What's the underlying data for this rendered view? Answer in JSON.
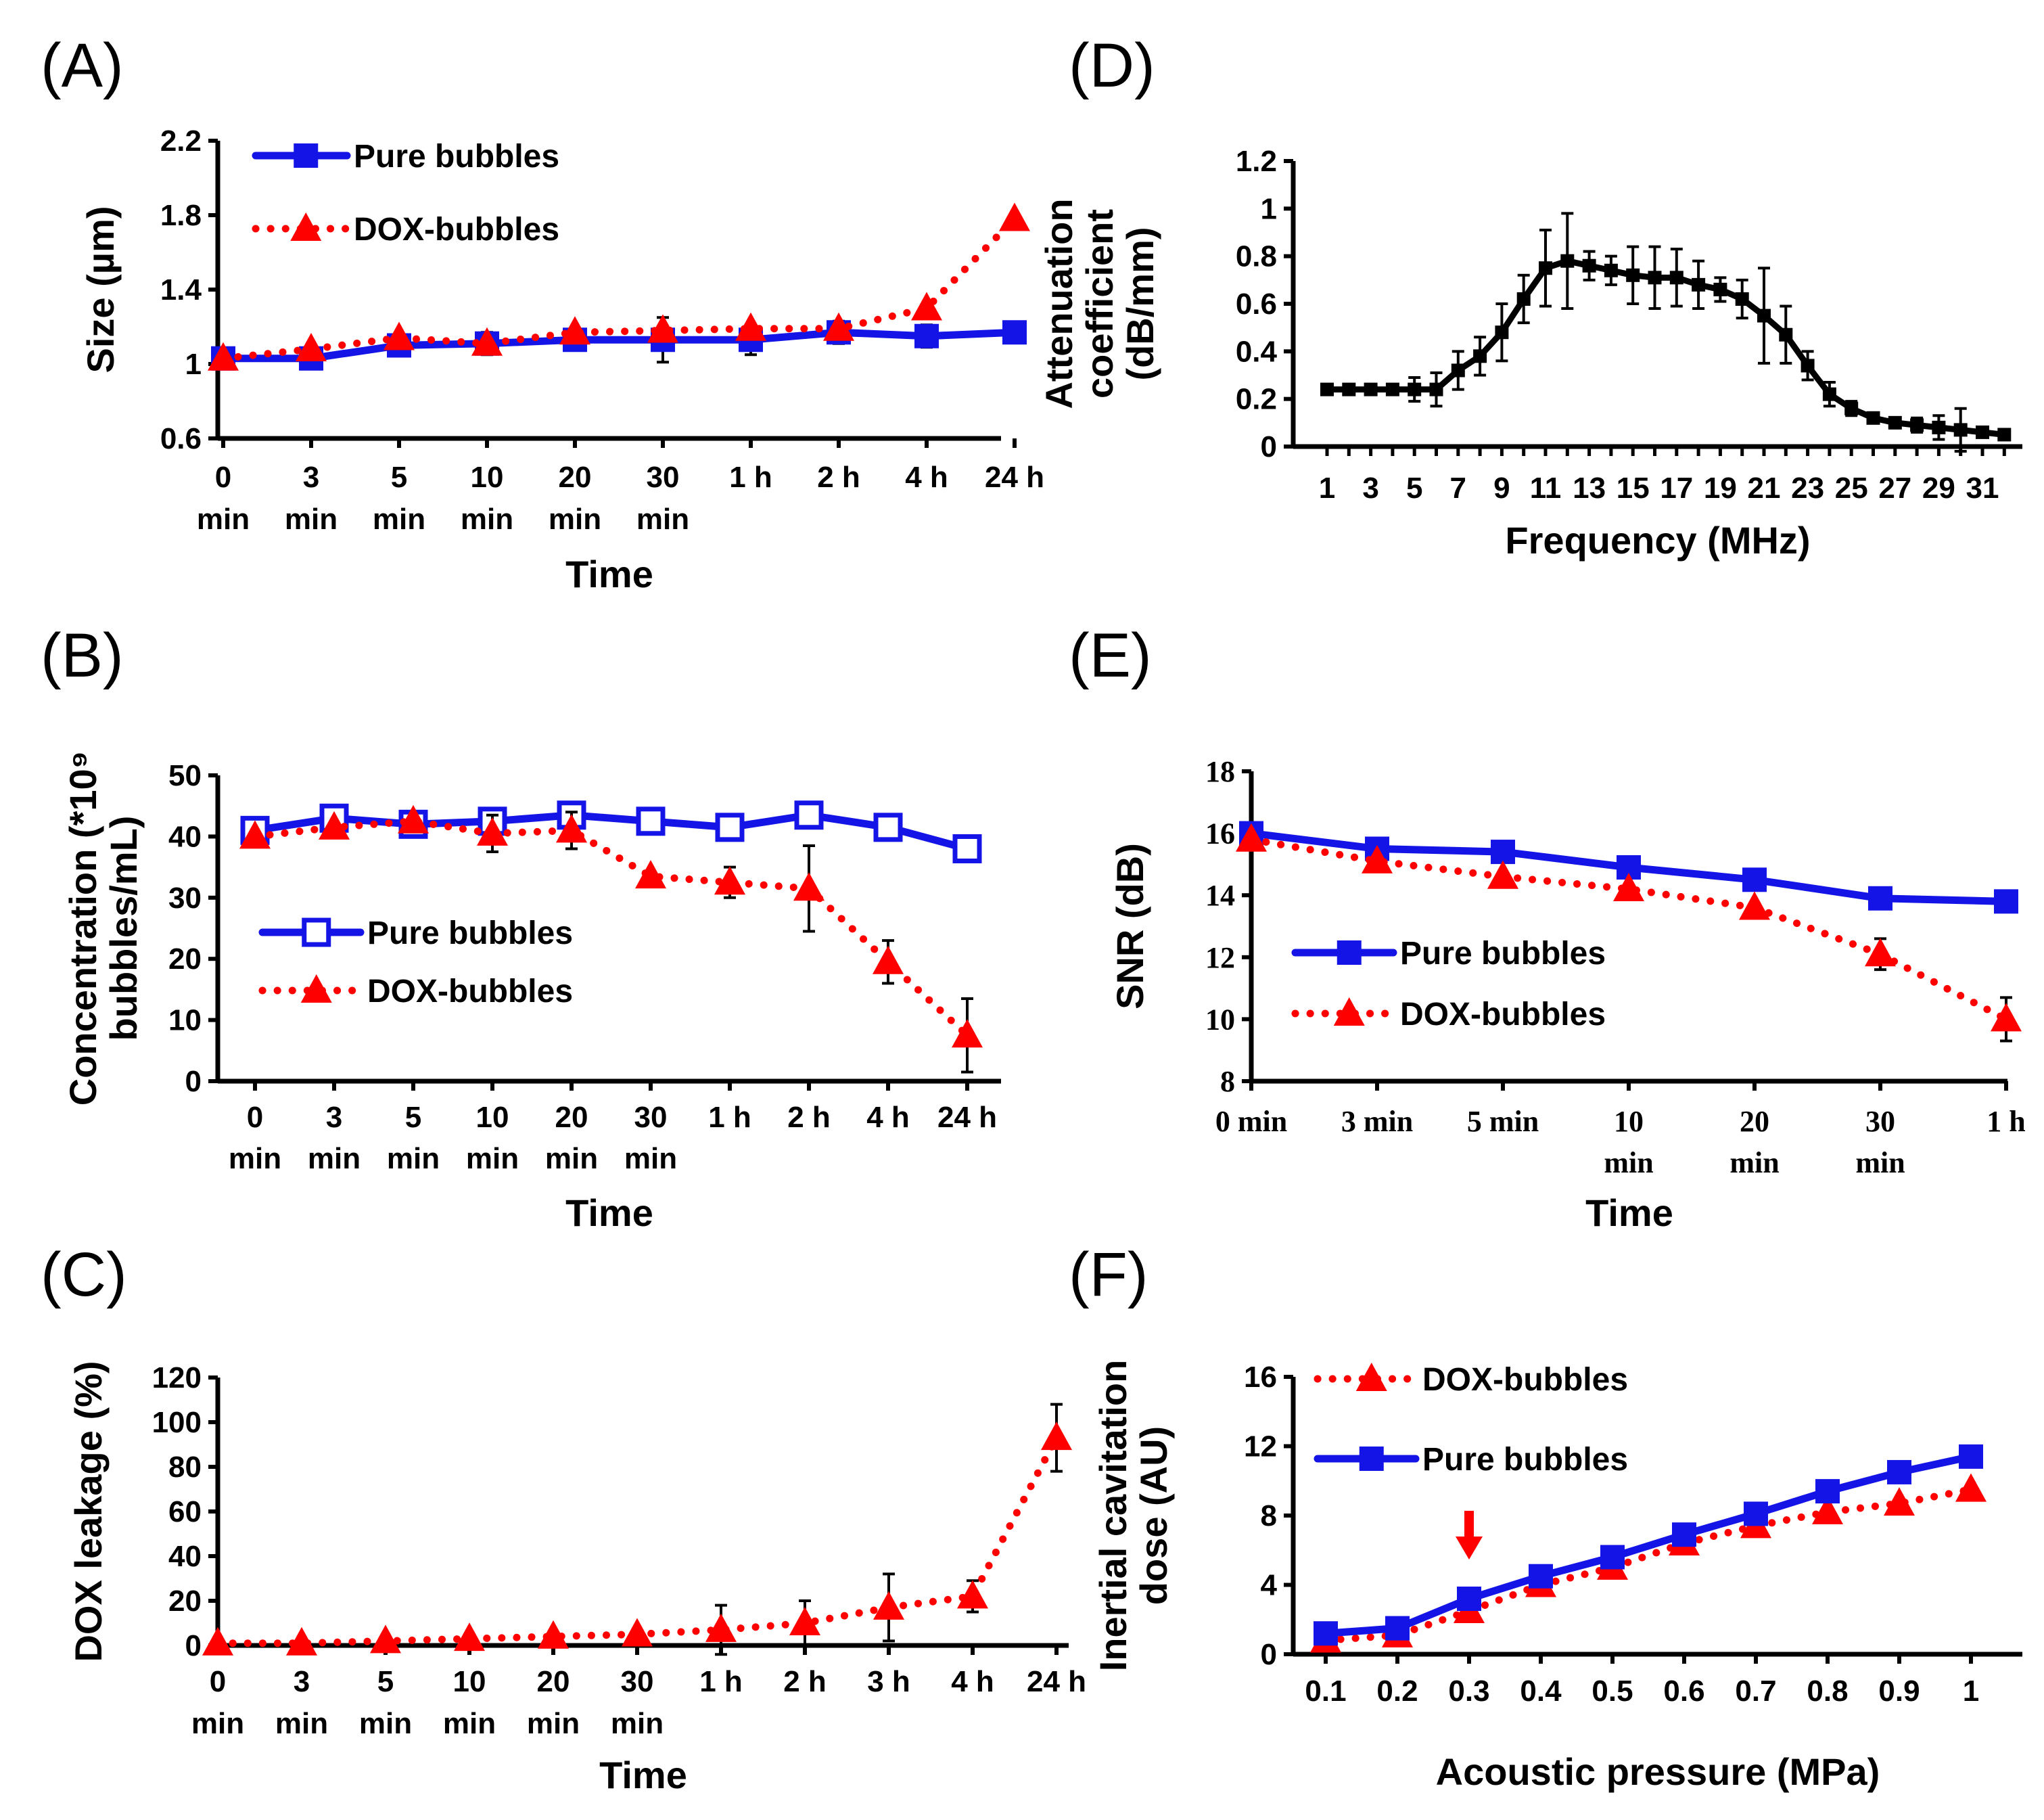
{
  "colors": {
    "blue": "#1414e6",
    "red": "#ff0000",
    "black": "#000000"
  },
  "chart_data": [
    {
      "panel": "(A)",
      "type": "line",
      "categories": [
        [
          "0",
          "min"
        ],
        [
          "3",
          "min"
        ],
        [
          "5",
          "min"
        ],
        [
          "10",
          "min"
        ],
        [
          "20",
          "min"
        ],
        [
          "30",
          "min"
        ],
        [
          "1 h"
        ],
        [
          "2 h"
        ],
        [
          "4 h"
        ],
        [
          "24 h"
        ]
      ],
      "xlabel": "Time",
      "ylabel": [
        "Size (µm)"
      ],
      "ylim": [
        0.6,
        2.2
      ],
      "yticks": [
        0.6,
        1,
        1.4,
        1.8,
        2.2
      ],
      "ytick_labels": [
        "0.6",
        "1",
        "1.4",
        "1.8",
        "2.2"
      ],
      "legend": [
        "Pure bubbles",
        "DOX-bubbles"
      ],
      "series": [
        {
          "name": "Pure bubbles",
          "color": "#1414e6",
          "marker": "square",
          "style": "solid",
          "values": [
            1.03,
            1.03,
            1.1,
            1.11,
            1.13,
            1.13,
            1.13,
            1.17,
            1.15,
            1.17
          ],
          "errors": [
            0.02,
            0.03,
            0.05,
            0.06,
            0.04,
            0.12,
            0.08,
            0.06,
            0.06,
            0.03
          ]
        },
        {
          "name": "DOX-bubbles",
          "color": "#ff0000",
          "marker": "triangle",
          "style": "dotted",
          "values": [
            1.03,
            1.08,
            1.14,
            1.11,
            1.17,
            1.18,
            1.19,
            1.19,
            1.3,
            1.78
          ],
          "errors": [
            0,
            0,
            0,
            0,
            0,
            0,
            0,
            0,
            0,
            0
          ]
        }
      ]
    },
    {
      "panel": "(B)",
      "type": "line",
      "categories": [
        [
          "0",
          "min"
        ],
        [
          "3",
          "min"
        ],
        [
          "5",
          "min"
        ],
        [
          "10",
          "min"
        ],
        [
          "20",
          "min"
        ],
        [
          "30",
          "min"
        ],
        [
          "1 h"
        ],
        [
          "2 h"
        ],
        [
          "4 h"
        ],
        [
          "24 h"
        ]
      ],
      "xlabel": "Time",
      "ylabel": [
        "Concentration (*10⁹",
        "bubbles/mL)"
      ],
      "ylim": [
        0,
        50
      ],
      "yticks": [
        0,
        10,
        20,
        30,
        40,
        50
      ],
      "ytick_labels": [
        "0",
        "10",
        "20",
        "30",
        "40",
        "50"
      ],
      "legend": [
        "Pure bubbles",
        "DOX-bubbles"
      ],
      "series": [
        {
          "name": "Pure bubbles",
          "color": "#1414e6",
          "marker": "square-open",
          "style": "solid",
          "values": [
            41,
            43,
            42,
            42.5,
            43.5,
            42.5,
            41.5,
            43.5,
            41.5,
            38
          ],
          "errors": [
            0,
            0,
            0,
            0,
            0,
            0,
            0,
            0,
            0,
            0
          ]
        },
        {
          "name": "DOX-bubbles",
          "color": "#ff0000",
          "marker": "triangle",
          "style": "dotted",
          "values": [
            40,
            41.5,
            42.5,
            40.5,
            41,
            33.5,
            32.5,
            31.5,
            19.5,
            7.5
          ],
          "errors": [
            0,
            0,
            0,
            3,
            3,
            0,
            2.5,
            7,
            3.5,
            6
          ]
        }
      ]
    },
    {
      "panel": "(C)",
      "type": "line",
      "categories": [
        [
          "0",
          "min"
        ],
        [
          "3",
          "min"
        ],
        [
          "5",
          "min"
        ],
        [
          "10",
          "min"
        ],
        [
          "20",
          "min"
        ],
        [
          "30",
          "min"
        ],
        [
          "1 h"
        ],
        [
          "2 h"
        ],
        [
          "3 h"
        ],
        [
          "4 h"
        ],
        [
          "24 h"
        ]
      ],
      "xlabel": "Time",
      "ylabel": [
        "DOX leakage (%)"
      ],
      "ylim": [
        0,
        120
      ],
      "yticks": [
        0,
        20,
        40,
        60,
        80,
        100,
        120
      ],
      "ytick_labels": [
        "0",
        "20",
        "40",
        "60",
        "80",
        "100",
        "120"
      ],
      "legend": [],
      "series": [
        {
          "name": "DOX-bubbles",
          "color": "#ff0000",
          "marker": "triangle",
          "style": "dotted",
          "values": [
            1,
            1,
            2,
            3,
            4,
            5,
            7,
            10,
            17,
            22,
            93
          ],
          "errors": [
            0,
            0,
            0,
            0,
            0,
            0,
            11,
            10,
            15,
            7,
            15
          ]
        }
      ]
    },
    {
      "panel": "(D)",
      "type": "line",
      "x": [
        1,
        2,
        3,
        4,
        5,
        6,
        7,
        8,
        9,
        10,
        11,
        12,
        13,
        14,
        15,
        16,
        17,
        18,
        19,
        20,
        21,
        22,
        23,
        24,
        25,
        26,
        27,
        28,
        29,
        30,
        31,
        32
      ],
      "xtick_labels": [
        "1",
        "3",
        "5",
        "7",
        "9",
        "11",
        "13",
        "15",
        "17",
        "19",
        "21",
        "23",
        "25",
        "27",
        "29",
        "31"
      ],
      "xlabel": "Frequency (MHz)",
      "ylabel": [
        "Attenuation",
        "coefficient",
        "(dB/mm)"
      ],
      "ylim": [
        0,
        1.2
      ],
      "yticks": [
        0,
        0.2,
        0.4,
        0.6,
        0.8,
        1,
        1.2
      ],
      "ytick_labels": [
        "0",
        "0.2",
        "0.4",
        "0.6",
        "0.8",
        "1",
        "1.2"
      ],
      "legend": [],
      "series": [
        {
          "name": "Attenuation",
          "color": "#000000",
          "marker": "dot",
          "style": "solid",
          "values": [
            0.24,
            0.24,
            0.24,
            0.24,
            0.24,
            0.24,
            0.32,
            0.38,
            0.48,
            0.62,
            0.75,
            0.78,
            0.76,
            0.74,
            0.72,
            0.71,
            0.71,
            0.68,
            0.66,
            0.62,
            0.55,
            0.47,
            0.34,
            0.22,
            0.16,
            0.12,
            0.1,
            0.09,
            0.08,
            0.07,
            0.06,
            0.05
          ],
          "errors": [
            0.02,
            0.02,
            0.02,
            0.02,
            0.05,
            0.07,
            0.08,
            0.08,
            0.12,
            0.1,
            0.16,
            0.2,
            0.06,
            0.06,
            0.12,
            0.13,
            0.12,
            0.1,
            0.05,
            0.08,
            0.2,
            0.12,
            0.06,
            0.05,
            0.03,
            0.02,
            0.02,
            0.03,
            0.05,
            0.09,
            0.02,
            0.01
          ]
        }
      ]
    },
    {
      "panel": "(E)",
      "type": "line",
      "categories": [
        [
          "0 min"
        ],
        [
          "3 min"
        ],
        [
          "5 min"
        ],
        [
          "10",
          "min"
        ],
        [
          "20",
          "min"
        ],
        [
          "30",
          "min"
        ],
        [
          "1 h"
        ]
      ],
      "xlabel": "Time",
      "ylabel": [
        "SNR (dB)"
      ],
      "ylim": [
        8,
        18
      ],
      "yticks": [
        8,
        10,
        12,
        14,
        16,
        18
      ],
      "ytick_labels": [
        "8",
        "10",
        "12",
        "14",
        "16",
        "18"
      ],
      "legend": [
        "Pure bubbles",
        "DOX-bubbles"
      ],
      "series": [
        {
          "name": "Pure bubbles",
          "color": "#1414e6",
          "marker": "square",
          "style": "solid",
          "values": [
            16,
            15.5,
            15.4,
            14.9,
            14.5,
            13.9,
            13.8
          ],
          "errors": [
            0,
            0,
            0,
            0,
            0.2,
            0,
            0
          ]
        },
        {
          "name": "DOX-bubbles",
          "color": "#ff0000",
          "marker": "triangle",
          "style": "dotted",
          "values": [
            15.8,
            15.1,
            14.6,
            14.2,
            13.6,
            12.1,
            10
          ],
          "errors": [
            0,
            0,
            0,
            0,
            0,
            0.5,
            0.7
          ]
        }
      ]
    },
    {
      "panel": "(F)",
      "type": "line",
      "categories": [
        [
          "0.1"
        ],
        [
          "0.2"
        ],
        [
          "0.3"
        ],
        [
          "0.4"
        ],
        [
          "0.5"
        ],
        [
          "0.6"
        ],
        [
          "0.7"
        ],
        [
          "0.8"
        ],
        [
          "0.9"
        ],
        [
          "1"
        ]
      ],
      "xlabel": "Acoustic pressure (MPa)",
      "ylabel": [
        "Inertial cavitation",
        "dose (AU)"
      ],
      "ylim": [
        0,
        16
      ],
      "yticks": [
        0,
        4,
        8,
        12,
        16
      ],
      "ytick_labels": [
        "0",
        "4",
        "8",
        "12",
        "16"
      ],
      "legend": [
        "DOX-bubbles",
        "Pure bubbles"
      ],
      "annotation": {
        "type": "arrow",
        "at_category": 2,
        "color": "#ff0000"
      },
      "series": [
        {
          "name": "DOX-bubbles",
          "color": "#ff0000",
          "marker": "triangle",
          "style": "dotted",
          "values": [
            0.8,
            1.1,
            2.5,
            4,
            5,
            6.4,
            7.4,
            8.2,
            8.7,
            9.5
          ],
          "errors": [
            0,
            0,
            0,
            0,
            0,
            0,
            0,
            0,
            0,
            0
          ]
        },
        {
          "name": "Pure bubbles",
          "color": "#1414e6",
          "marker": "square",
          "style": "solid",
          "values": [
            1.2,
            1.5,
            3.2,
            4.5,
            5.6,
            6.9,
            8.1,
            9.4,
            10.5,
            11.4
          ],
          "errors": [
            0,
            0,
            0,
            0,
            0,
            0,
            0,
            0,
            0,
            0
          ]
        }
      ]
    }
  ]
}
